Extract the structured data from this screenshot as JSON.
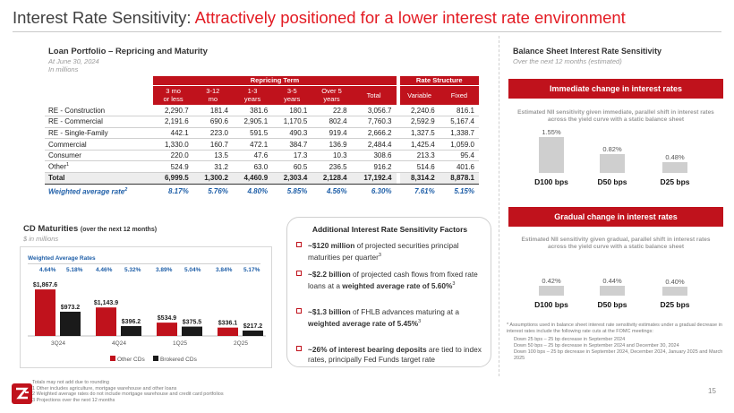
{
  "title": {
    "prefix": "Interest Rate Sensitivity: ",
    "accent": "Attractively positioned for a lower interest rate environment"
  },
  "loan_portfolio": {
    "title": "Loan Portfolio – Repricing and Maturity",
    "subtitle1": "At June 30, 2024",
    "subtitle2": "In millions",
    "group_headers": {
      "repricing": "Repricing Term",
      "rate": "Rate Structure"
    },
    "columns": [
      "3 mo or less",
      "3-12 mo",
      "1-3 years",
      "3-5 years",
      "Over 5 years",
      "Total",
      "Variable",
      "Fixed"
    ],
    "column_lines": [
      [
        "3 mo",
        "or less"
      ],
      [
        "3-12",
        "mo"
      ],
      [
        "1-3",
        "years"
      ],
      [
        "3-5",
        "years"
      ],
      [
        "Over 5",
        "years"
      ],
      [
        "Total",
        ""
      ],
      [
        "Variable",
        ""
      ],
      [
        "Fixed",
        ""
      ]
    ],
    "rows": [
      {
        "label": "RE - Construction",
        "sup": "",
        "values": [
          "2,290.7",
          "181.4",
          "381.6",
          "180.1",
          "22.8",
          "3,056.7",
          "2,240.6",
          "816.1"
        ]
      },
      {
        "label": "RE - Commercial",
        "sup": "",
        "values": [
          "2,191.6",
          "690.6",
          "2,905.1",
          "1,170.5",
          "802.4",
          "7,760.3",
          "2,592.9",
          "5,167.4"
        ]
      },
      {
        "label": "RE - Single-Family",
        "sup": "",
        "values": [
          "442.1",
          "223.0",
          "591.5",
          "490.3",
          "919.4",
          "2,666.2",
          "1,327.5",
          "1,338.7"
        ]
      },
      {
        "label": "Commercial",
        "sup": "",
        "values": [
          "1,330.0",
          "160.7",
          "472.1",
          "384.7",
          "136.9",
          "2,484.4",
          "1,425.4",
          "1,059.0"
        ]
      },
      {
        "label": "Consumer",
        "sup": "",
        "values": [
          "220.0",
          "13.5",
          "47.6",
          "17.3",
          "10.3",
          "308.6",
          "213.3",
          "95.4"
        ]
      },
      {
        "label": "Other",
        "sup": "1",
        "values": [
          "524.9",
          "31.2",
          "63.0",
          "60.5",
          "236.5",
          "916.2",
          "514.6",
          "401.6"
        ]
      }
    ],
    "total": {
      "label": "Total",
      "values": [
        "6,999.5",
        "1,300.2",
        "4,460.9",
        "2,303.4",
        "2,128.4",
        "17,192.4",
        "8,314.2",
        "8,878.1"
      ]
    },
    "weighted": {
      "label": "Weighted average rate",
      "sup": "2",
      "values": [
        "8.17%",
        "5.76%",
        "4.80%",
        "5.85%",
        "4.56%",
        "6.30%",
        "7.61%",
        "5.15%"
      ]
    }
  },
  "cd_maturities": {
    "title": "CD Maturities",
    "title_suffix": "(over the next 12 months)",
    "subtitle": "$ in millions",
    "wavg_label": "Weighted Average Rates",
    "rates": [
      "4.64%",
      "5.18%",
      "4.46%",
      "5.32%",
      "3.89%",
      "5.04%",
      "3.84%",
      "5.17%"
    ]
  },
  "chart_data": {
    "type": "bar",
    "categories": [
      "3Q24",
      "4Q24",
      "1Q25",
      "2Q25"
    ],
    "series": [
      {
        "name": "Other CDs",
        "values": [
          1867.6,
          1143.9,
          534.9,
          336.1
        ],
        "labels": [
          "$1,867.6",
          "$1,143.9",
          "$534.9",
          "$336.1"
        ],
        "color": "#c0121c"
      },
      {
        "name": "Brokered CDs",
        "values": [
          973.2,
          396.2,
          375.5,
          217.2
        ],
        "labels": [
          "$973.2",
          "$396.2",
          "$375.5",
          "$217.2"
        ],
        "color": "#1a1a1a"
      }
    ],
    "ylim": [
      0,
      2000
    ],
    "legend": "bottom",
    "grid": false
  },
  "factors": {
    "title": "Additional Interest Rate Sensitivity Factors",
    "items": [
      {
        "bold": "~$120 million",
        "text": " of projected securities principal maturities per quarter",
        "sup": "3",
        "bold2": "",
        "tail": ""
      },
      {
        "bold": "~$2.2 billion",
        "text": " of projected cash flows from fixed rate loans at a ",
        "bold2": "weighted average rate of 5.60%",
        "sup": "3",
        "tail": ""
      },
      {
        "bold": "~$1.3 billion",
        "text": " of FHLB advances maturing at a ",
        "bold2": "weighted average rate of 5.45%",
        "sup": "3",
        "tail": ""
      },
      {
        "bold": "~26% of interest bearing deposits",
        "text": " are tied to index rates, principally Fed Funds target rate",
        "bold2": "",
        "sup": "",
        "tail": ""
      }
    ]
  },
  "sensitivity": {
    "title": "Balance Sheet Interest Rate Sensitivity",
    "subtitle": "Over the next 12 months (estimated)",
    "immediate": {
      "banner": "Immediate change in interest rates",
      "desc": "Estimated NII sensitivity given immediate, parallel shift in interest rates across the yield curve with a static balance sheet",
      "bars": [
        {
          "label": "D100 bps",
          "pct": "1.55%",
          "value": 1.55
        },
        {
          "label": "D50 bps",
          "pct": "0.82%",
          "value": 0.82
        },
        {
          "label": "D25 bps",
          "pct": "0.48%",
          "value": 0.48
        }
      ]
    },
    "gradual": {
      "banner": "Gradual change in interest rates",
      "desc": "Estimated NII sensitivity given gradual, parallel shift in interest rates across the yield curve with a static balance sheet",
      "bars": [
        {
          "label": "D100 bps",
          "pct": "0.42%",
          "value": 0.42
        },
        {
          "label": "D50 bps",
          "pct": "0.44%",
          "value": 0.44
        },
        {
          "label": "D25 bps",
          "pct": "0.40%",
          "value": 0.4
        }
      ]
    },
    "footnote": {
      "main": "* Assumptions used in balance sheet interest rate sensitivity estimates under a gradual decrease in interest rates include the following rate cuts at the FOMC meetings:",
      "lines": [
        "Down 25 bps – 25 bp decrease in September 2024",
        "Down 50 bps – 25 bp decrease in September 2024 and December 30, 2024",
        "Down 100 bps – 25 bp decrease in September 2024, December 2024, January 2025 and March 2025"
      ]
    }
  },
  "footer": {
    "notes": [
      "Totals may not add due to rounding",
      "1   Other includes agriculture, mortgage warehouse and other loans",
      "2   Weighted average rates do not include mortgage warehouse and credit card portfolios",
      "3   Projections over the next 12 months"
    ],
    "page": "15"
  }
}
